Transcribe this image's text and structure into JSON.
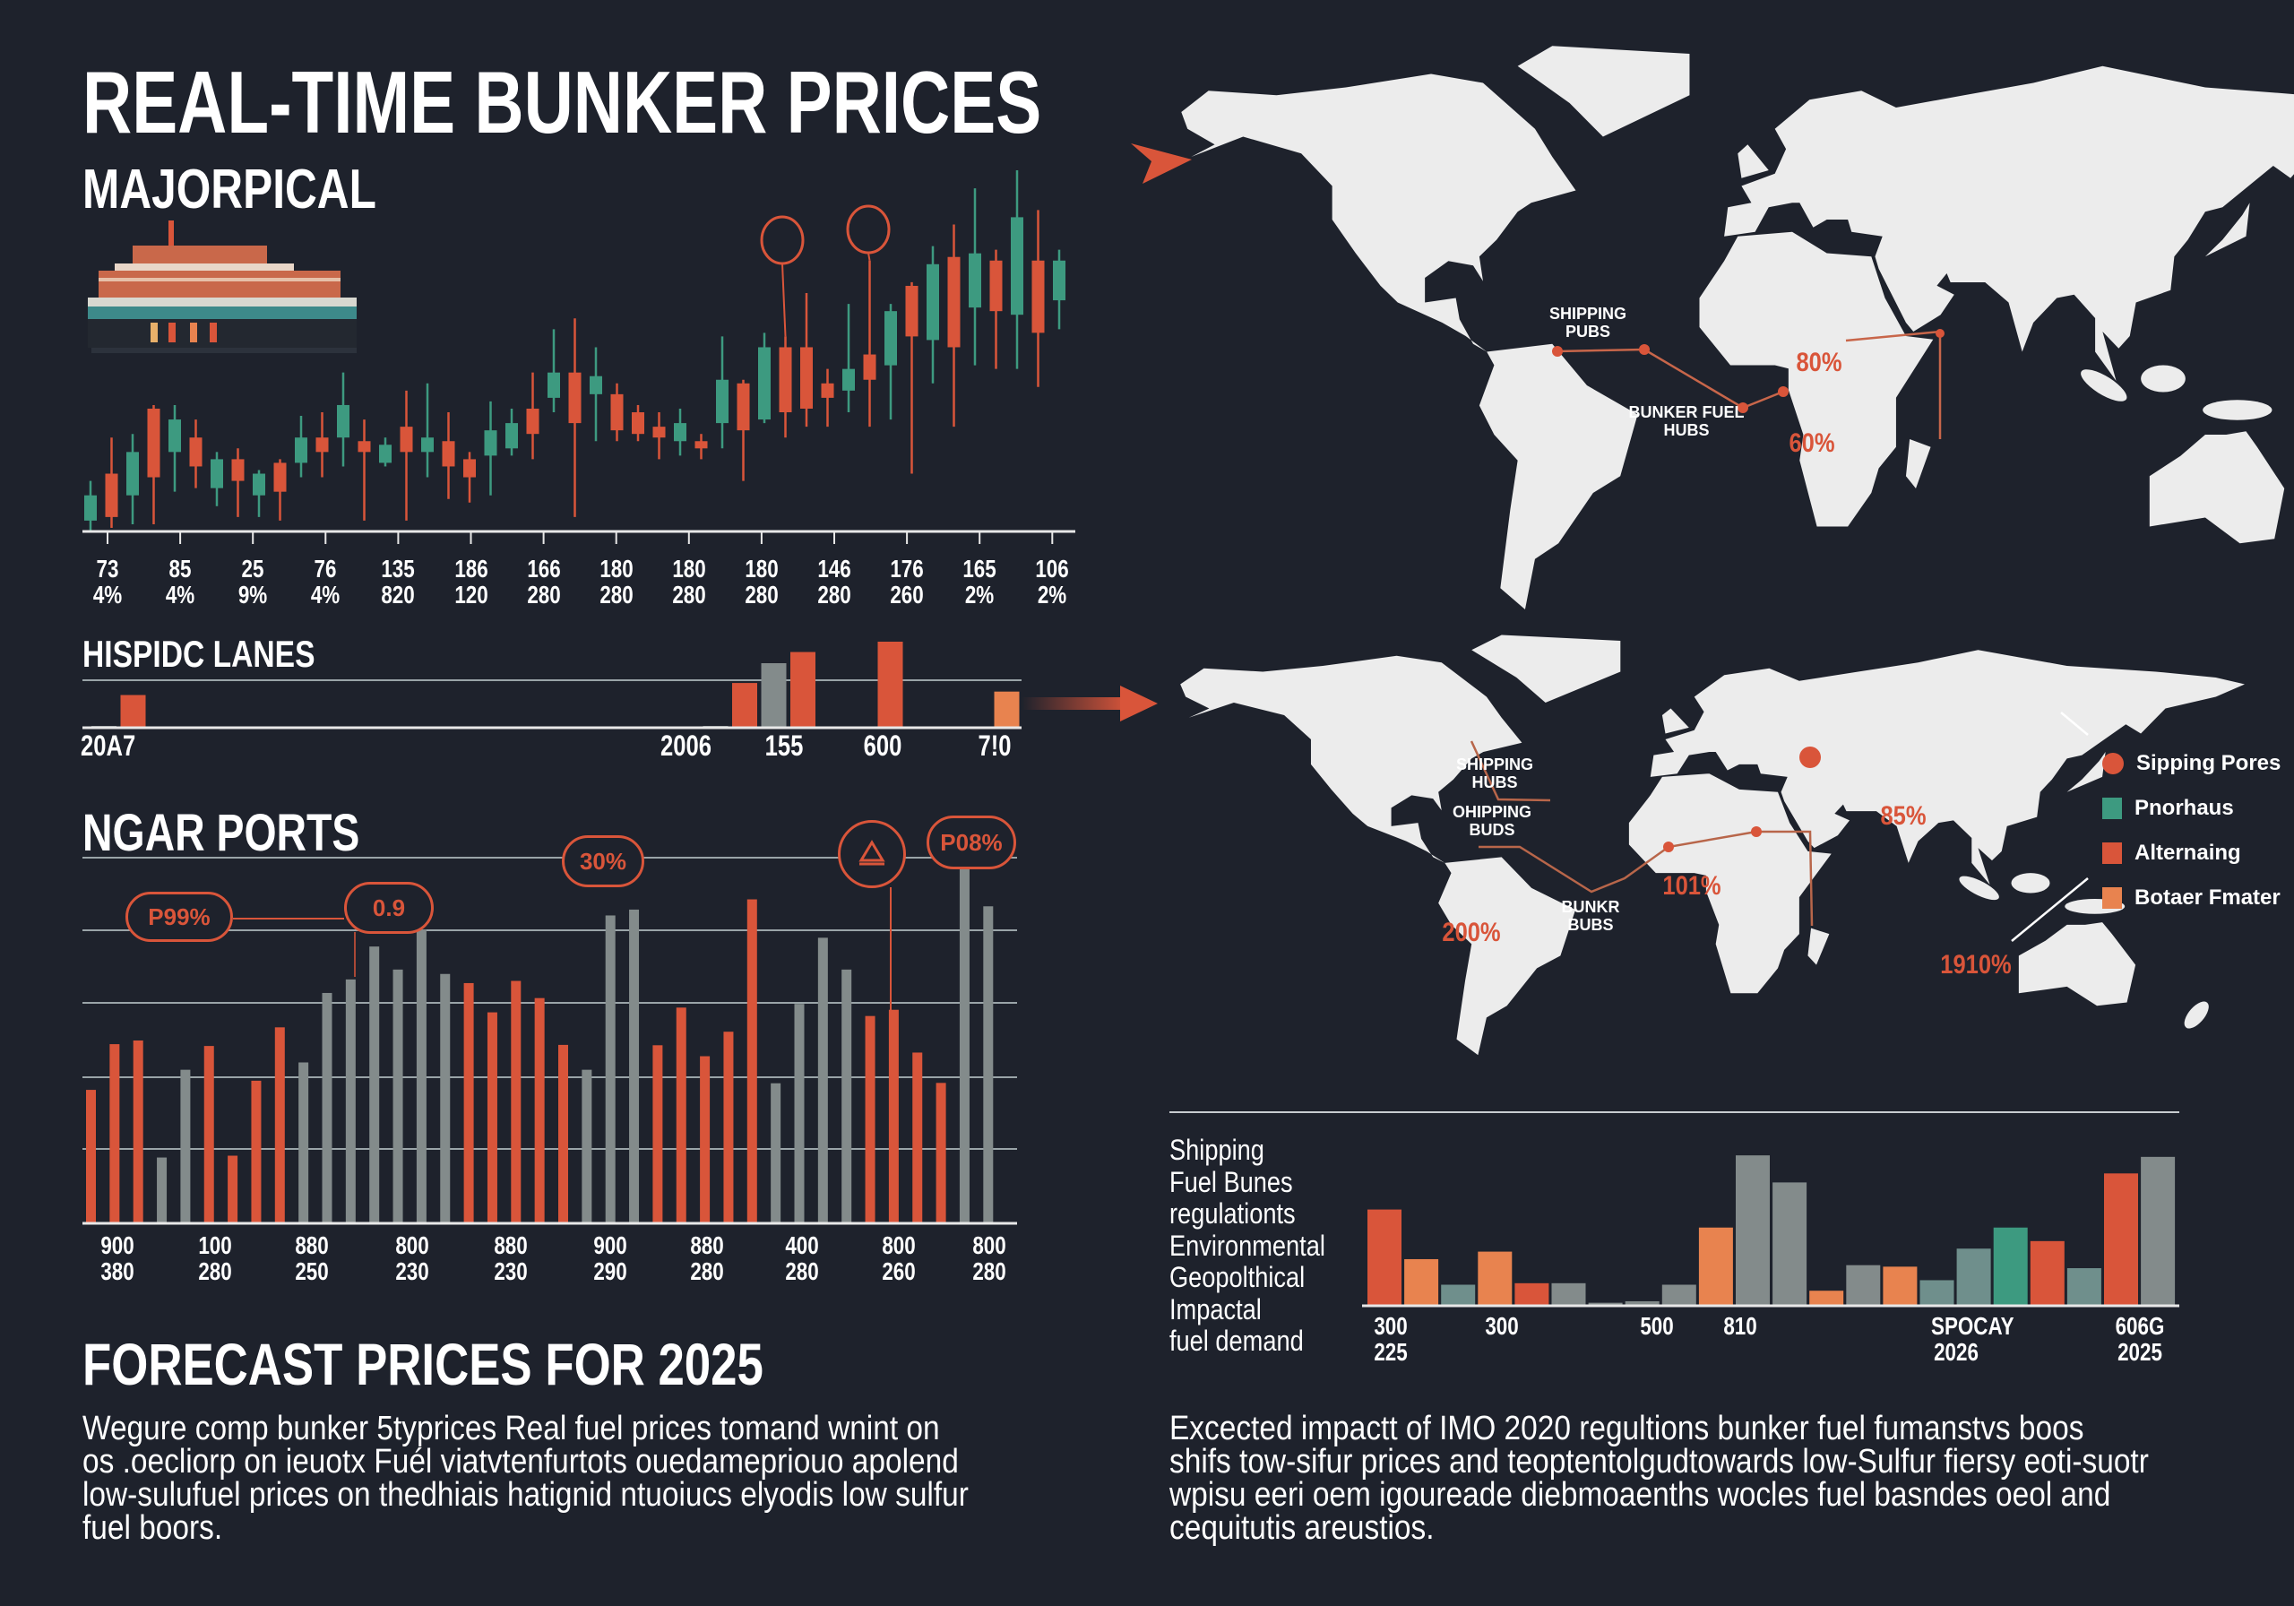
{
  "title": "REAL-TIME BUNKER PRICES",
  "subtitle": "MAJORPICAL",
  "colors": {
    "background": "#1e222c",
    "orange": "#d9553a",
    "light_orange": "#e8834f",
    "teal": "#3d9a80",
    "teal_grey": "#6f8f8c",
    "grey": "#838b8b",
    "land": "#ececec"
  },
  "sections": {
    "lanes": "HISPIDC LANES",
    "ports": "NGAR PORTS",
    "forecast": "FORECAST PRICES FOR 2025"
  },
  "forecast_text": [
    "Wegure comp bunker 5typrices Real fuel prices  tomand wnint on",
    "os .oecliorp on ieuotx Fuél viatvtenfurtots ouedamepriouo apolend",
    "low-sulufuel prices on thedhiais hatignid ntuoiucs elyodis low sulfur",
    "fuel boors."
  ],
  "impact_text": [
    "Excected impactt  of IMO 2020 regultions bunker fuel fumanstvs boos",
    "shifs tow-sifur prices and teoptentolgudtowards low-Sulfur fiersy  eoti-suotr",
    "wpisu eeri oem igoureade diebmoaenths wocles fuel basndes oeol and",
    "cequitutis areustios."
  ],
  "port_annotations": [
    "P99%",
    "0.9",
    "30%",
    "P08%"
  ],
  "port_annotation_icon": "ship-icon",
  "map_top": {
    "hub_label": "SHIPPING\nPUBS",
    "bunker_label": "BUNKER FUEL\nHUBS",
    "pct_1": "80%",
    "pct_2": "60%"
  },
  "map_bottom": {
    "hub_label_1": "SHIPPING\nHUBS",
    "hub_label_2": "OHIPPING\nBUDS",
    "bunker_label": "BUNKR\nBUBS",
    "pct_1": "200%",
    "pct_2": "101%",
    "pct_3": "85%",
    "pct_4": "1910%",
    "legend": [
      {
        "label": "Sipping Pores",
        "color": "#d9553a",
        "shape": "circle"
      },
      {
        "label": "Pnorhaus",
        "color": "#3d9a80",
        "shape": "square"
      },
      {
        "label": "Alternaing",
        "color": "#d9553a",
        "shape": "square"
      },
      {
        "label": "Botaer Fmater",
        "color": "#e8834f",
        "shape": "square"
      }
    ]
  },
  "forecast_side_labels": [
    "Shipping",
    "Fuel Bunes",
    "regulationts",
    "Environmental",
    "Geopolthical",
    "Impactal",
    "fuel demand"
  ],
  "chart_data": [
    {
      "type": "candlestick",
      "title": "",
      "ylim": [
        0,
        100
      ],
      "grid": false,
      "up_color": "#3d9a80",
      "down_color": "#d9553a",
      "candles_ohlc": [
        [
          3,
          14,
          0,
          10
        ],
        [
          16,
          26,
          1,
          4
        ],
        [
          10,
          27,
          2,
          22
        ],
        [
          34,
          35,
          2,
          15
        ],
        [
          22,
          35,
          11,
          31
        ],
        [
          26,
          31,
          12,
          18
        ],
        [
          12,
          22,
          7,
          20
        ],
        [
          20,
          23,
          4,
          14
        ],
        [
          10,
          17,
          4,
          16
        ],
        [
          19,
          20,
          3,
          11
        ],
        [
          19,
          32,
          15,
          26
        ],
        [
          26,
          33,
          15,
          22
        ],
        [
          26,
          44,
          18,
          35
        ],
        [
          25,
          31,
          3,
          22
        ],
        [
          19,
          26,
          18,
          24
        ],
        [
          29,
          39,
          3,
          22
        ],
        [
          22,
          41,
          15,
          26
        ],
        [
          25,
          33,
          9,
          18
        ],
        [
          20,
          22,
          8,
          15
        ],
        [
          21,
          36,
          10,
          28
        ],
        [
          23,
          34,
          21,
          30
        ],
        [
          34,
          44,
          20,
          27
        ],
        [
          37,
          56,
          33,
          44
        ],
        [
          44,
          59,
          4,
          30
        ],
        [
          38,
          51,
          25,
          43
        ],
        [
          38,
          41,
          25,
          28
        ],
        [
          33,
          35,
          25,
          27
        ],
        [
          29,
          33,
          20,
          26
        ],
        [
          25,
          34,
          21,
          30
        ],
        [
          25,
          27,
          20,
          23
        ],
        [
          30,
          54,
          23,
          42
        ],
        [
          41,
          42,
          14,
          28
        ],
        [
          31,
          55,
          30,
          51
        ],
        [
          51,
          54,
          26,
          33
        ],
        [
          51,
          66,
          29,
          34
        ],
        [
          41,
          45,
          29,
          37
        ],
        [
          39,
          63,
          33,
          45
        ],
        [
          49,
          75,
          29,
          42
        ],
        [
          46,
          63,
          31,
          61
        ],
        [
          68,
          69,
          16,
          54
        ],
        [
          53,
          79,
          41,
          74
        ],
        [
          76,
          85,
          29,
          51
        ],
        [
          62,
          95,
          46,
          77
        ],
        [
          75,
          78,
          45,
          61
        ],
        [
          60,
          100,
          45,
          87
        ],
        [
          75,
          89,
          40,
          55
        ],
        [
          64,
          78,
          56,
          75
        ]
      ],
      "highlighted_candles": [
        34,
        38
      ],
      "x_labels": [
        [
          "73",
          "4%"
        ],
        [
          "85",
          "4%"
        ],
        [
          "25",
          "9%"
        ],
        [
          "76",
          "4%"
        ],
        [
          "135",
          "820"
        ],
        [
          "186",
          "120"
        ],
        [
          "166",
          "280"
        ],
        [
          "180",
          "280"
        ],
        [
          "180",
          "280"
        ],
        [
          "180",
          "280"
        ],
        [
          "146",
          "280"
        ],
        [
          "176",
          "260"
        ],
        [
          "165",
          "2%"
        ],
        [
          "106",
          "2%"
        ]
      ]
    },
    {
      "type": "bar",
      "title": "HISPIDC LANES",
      "ylim": [
        0,
        100
      ],
      "grid": true,
      "values": [
        1,
        38,
        0,
        0,
        0,
        0,
        0,
        0,
        0,
        0,
        0,
        0,
        0,
        0,
        0,
        0,
        0,
        0,
        0,
        0,
        0,
        1,
        52,
        75,
        88,
        0,
        0,
        100,
        0,
        0,
        0,
        42
      ],
      "colors": [
        "grey",
        "orange",
        "",
        "",
        "",
        "",
        "",
        "",
        "",
        "",
        "",
        "",
        "",
        "",
        "",
        "",
        "",
        "",
        "",
        "",
        "",
        "grey",
        "orange",
        "grey",
        "orange",
        "",
        "",
        "orange",
        "",
        "",
        "",
        "light_orange"
      ],
      "x_labels": [
        "20A7",
        "2006",
        "155",
        "600",
        "7!0"
      ]
    },
    {
      "type": "bar",
      "title": "NGAR PORTS",
      "ylim": [
        0,
        100
      ],
      "grid": true,
      "values": [
        36.5,
        49,
        50,
        18,
        42,
        48.5,
        18.5,
        39,
        53.6,
        44,
        63,
        66.7,
        75.7,
        69.4,
        80.4,
        68.2,
        65.7,
        57.7,
        66.3,
        61.6,
        48.8,
        42,
        84.2,
        85.8,
        48.7,
        59,
        45.7,
        52.4,
        88.6,
        38.3,
        60,
        78.1,
        69.4,
        56.7,
        58.4,
        46.7,
        38.4,
        98,
        86.7
      ],
      "colors": [
        "orange",
        "orange",
        "orange",
        "grey",
        "grey",
        "orange",
        "orange",
        "orange",
        "orange",
        "grey",
        "grey",
        "grey",
        "grey",
        "grey",
        "grey",
        "grey",
        "orange",
        "orange",
        "orange",
        "orange",
        "orange",
        "grey",
        "grey",
        "grey",
        "orange",
        "orange",
        "orange",
        "orange",
        "orange",
        "grey",
        "grey",
        "grey",
        "grey",
        "orange",
        "orange",
        "orange",
        "orange",
        "grey",
        "grey"
      ],
      "x_labels": [
        [
          "900",
          "380"
        ],
        [
          "100",
          "280"
        ],
        [
          "880",
          "250"
        ],
        [
          "800",
          "230"
        ],
        [
          "880",
          "230"
        ],
        [
          "900",
          "290"
        ],
        [
          "880",
          "280"
        ],
        [
          "400",
          "280"
        ],
        [
          "800",
          "260"
        ],
        [
          "800",
          "280"
        ]
      ]
    },
    {
      "type": "bar",
      "title": "",
      "ylim": [
        0,
        100
      ],
      "grid": false,
      "values": [
        64,
        31,
        14,
        36,
        15,
        15,
        2,
        3,
        14,
        52,
        100,
        82,
        10,
        27,
        26,
        17,
        38,
        52,
        43,
        25,
        88,
        99
      ],
      "colors": [
        "orange",
        "light_orange",
        "teal_grey",
        "light_orange",
        "orange",
        "grey",
        "grey",
        "grey",
        "grey",
        "light_orange",
        "grey",
        "grey",
        "light_orange",
        "grey",
        "light_orange",
        "teal_grey",
        "teal_grey",
        "teal",
        "orange",
        "teal_grey",
        "orange",
        "grey"
      ],
      "x_labels": [
        [
          "300",
          "225"
        ],
        [
          "300",
          ""
        ],
        [
          "500",
          ""
        ],
        [
          "810",
          ""
        ],
        [
          "SPOCAY",
          "2026"
        ],
        [
          "606G",
          "2025"
        ]
      ]
    }
  ]
}
